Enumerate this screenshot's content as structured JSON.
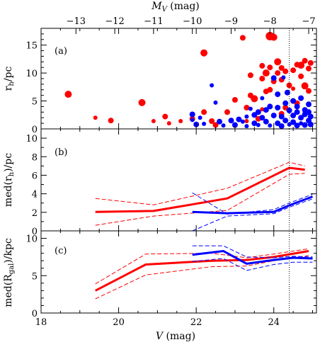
{
  "labels": {
    "top_axis": "M",
    "top_axis_sub": "V",
    "top_axis_unit": " (mag)",
    "bottom_axis": "V",
    "bottom_axis_unit": " (mag)",
    "ylabel_a_main": "r",
    "ylabel_a_sub": "h",
    "ylabel_a_unit": "/pc",
    "ylabel_b_pre": "med(r",
    "ylabel_b_sub": "h",
    "ylabel_b_post": ")/pc",
    "ylabel_c_pre": "med(R",
    "ylabel_c_sub": "gal",
    "ylabel_c_post": ")/kpc",
    "panel_a": "(a)",
    "panel_b": "(b)",
    "panel_c": "(c)"
  },
  "colors": {
    "red": "#ff0000",
    "blue": "#0000ff",
    "axis": "#000000"
  },
  "chart_data": [
    {
      "type": "scatter",
      "panel": "(a)",
      "xlim": [
        18,
        25.1
      ],
      "ylim": [
        0,
        18
      ],
      "x_ticks": [
        18,
        20,
        22,
        24
      ],
      "y_ticks": [
        0,
        5,
        10,
        15
      ],
      "top_axis_ticks": [
        -13,
        -12,
        -11,
        -10,
        -9,
        -8,
        -7
      ],
      "top_axis_offset": 31.9,
      "vline_x": 24.4,
      "series": [
        {
          "color": "red",
          "points": [
            [
              18.7,
              6.2,
              5
            ],
            [
              19.4,
              2.0,
              3
            ],
            [
              19.8,
              1.5,
              4
            ],
            [
              20.6,
              4.7,
              5
            ],
            [
              20.9,
              1.4,
              3
            ],
            [
              21.2,
              2.2,
              4
            ],
            [
              21.3,
              1.0,
              3
            ],
            [
              21.6,
              1.4,
              3
            ],
            [
              21.9,
              1.8,
              4
            ],
            [
              22.2,
              13.6,
              5
            ],
            [
              22.2,
              3.0,
              4
            ],
            [
              22.4,
              1.4,
              4
            ],
            [
              22.5,
              0.7,
              4
            ],
            [
              22.8,
              3.0,
              4
            ],
            [
              23.0,
              5.2,
              4
            ],
            [
              23.2,
              16.3,
              4
            ],
            [
              23.3,
              3.8,
              4
            ],
            [
              23.3,
              1.4,
              3
            ],
            [
              23.4,
              9.6,
              4
            ],
            [
              23.4,
              6.0,
              4
            ],
            [
              23.5,
              5.4,
              5
            ],
            [
              23.6,
              1.8,
              4
            ],
            [
              23.7,
              11.3,
              4
            ],
            [
              23.7,
              9.0,
              4
            ],
            [
              23.7,
              3.5,
              3
            ],
            [
              23.8,
              10.0,
              5
            ],
            [
              23.8,
              6.7,
              4
            ],
            [
              23.9,
              16.6,
              6
            ],
            [
              23.9,
              11.0,
              4
            ],
            [
              23.9,
              7.0,
              4
            ],
            [
              24.0,
              16.4,
              5
            ],
            [
              24.0,
              8.5,
              4
            ],
            [
              24.1,
              12.0,
              5
            ],
            [
              24.1,
              10.0,
              4
            ],
            [
              24.2,
              10.9,
              4
            ],
            [
              24.2,
              8.8,
              4
            ],
            [
              24.3,
              10.3,
              4
            ],
            [
              24.4,
              7.8,
              4
            ],
            [
              24.5,
              10.5,
              4
            ],
            [
              24.5,
              7.2,
              3
            ],
            [
              24.6,
              11.5,
              4
            ],
            [
              24.7,
              11.4,
              5
            ],
            [
              24.7,
              9.4,
              4
            ],
            [
              24.8,
              12.2,
              4
            ],
            [
              24.8,
              7.7,
              5
            ],
            [
              24.9,
              10.8,
              4
            ],
            [
              24.9,
              6.8,
              4
            ],
            [
              24.95,
              11.8,
              4
            ],
            [
              24.5,
              5.0,
              4
            ],
            [
              24.3,
              3.8,
              4
            ],
            [
              24.2,
              2.7,
              4
            ],
            [
              24.6,
              4.6,
              4
            ]
          ]
        },
        {
          "color": "blue",
          "points": [
            [
              21.9,
              2.6,
              4
            ],
            [
              21.9,
              1.6,
              3
            ],
            [
              22.0,
              0.8,
              4
            ],
            [
              22.1,
              2.0,
              3
            ],
            [
              22.2,
              0.9,
              3
            ],
            [
              22.4,
              7.8,
              3
            ],
            [
              22.5,
              4.7,
              3
            ],
            [
              22.6,
              1.3,
              4
            ],
            [
              22.7,
              0.6,
              3
            ],
            [
              22.9,
              1.5,
              4
            ],
            [
              23.0,
              0.7,
              4
            ],
            [
              23.1,
              1.7,
              4
            ],
            [
              23.2,
              1.3,
              3
            ],
            [
              23.3,
              0.5,
              3
            ],
            [
              23.3,
              2.2,
              3
            ],
            [
              23.4,
              3.6,
              3
            ],
            [
              23.5,
              1.0,
              4
            ],
            [
              23.5,
              2.5,
              4
            ],
            [
              23.6,
              3.0,
              4
            ],
            [
              23.6,
              0.7,
              3
            ],
            [
              23.7,
              2.0,
              4
            ],
            [
              23.7,
              5.5,
              3
            ],
            [
              23.8,
              1.3,
              4
            ],
            [
              23.8,
              3.4,
              4
            ],
            [
              23.9,
              0.6,
              3
            ],
            [
              23.9,
              4.0,
              4
            ],
            [
              24.0,
              2.4,
              4
            ],
            [
              24.0,
              9.1,
              4
            ],
            [
              24.1,
              1.0,
              4
            ],
            [
              24.1,
              3.8,
              4
            ],
            [
              24.1,
              6.2,
              4
            ],
            [
              24.2,
              2.2,
              4
            ],
            [
              24.2,
              0.5,
              4
            ],
            [
              24.3,
              1.5,
              4
            ],
            [
              24.3,
              4.6,
              4
            ],
            [
              24.4,
              3.3,
              4
            ],
            [
              24.4,
              0.8,
              3
            ],
            [
              24.5,
              2.4,
              4
            ],
            [
              24.5,
              5.0,
              4
            ],
            [
              24.5,
              1.2,
              4
            ],
            [
              24.6,
              3.0,
              4
            ],
            [
              24.6,
              0.6,
              4
            ],
            [
              24.6,
              4.0,
              4
            ],
            [
              24.7,
              2.0,
              4
            ],
            [
              24.7,
              1.0,
              3
            ],
            [
              24.7,
              5.5,
              4
            ],
            [
              24.8,
              3.4,
              4
            ],
            [
              24.8,
              0.7,
              4
            ],
            [
              24.8,
              2.6,
              4
            ],
            [
              24.9,
              1.5,
              4
            ],
            [
              24.9,
              4.4,
              4
            ],
            [
              24.9,
              3.0,
              4
            ],
            [
              24.95,
              2.2,
              4
            ],
            [
              24.95,
              0.8,
              4
            ],
            [
              24.35,
              6.5,
              4
            ],
            [
              24.25,
              9.2,
              3
            ]
          ]
        }
      ]
    },
    {
      "type": "line",
      "panel": "(b)",
      "xlim": [
        18,
        25.1
      ],
      "ylim": [
        0,
        11
      ],
      "x_ticks": [
        18,
        20,
        22,
        24
      ],
      "y_ticks": [
        0,
        2,
        4,
        6,
        8,
        10
      ],
      "vline_x": 24.4,
      "series": [
        {
          "color": "red",
          "style": "solid",
          "x": [
            19.4,
            20.9,
            22.8,
            24.4,
            24.8
          ],
          "y": [
            2.05,
            2.15,
            3.5,
            6.8,
            6.6
          ]
        },
        {
          "color": "red",
          "style": "dashed",
          "x": [
            19.4,
            20.9,
            22.8,
            24.4,
            24.8
          ],
          "y": [
            3.5,
            2.8,
            4.6,
            7.4,
            7.0
          ]
        },
        {
          "color": "red",
          "style": "dashed",
          "x": [
            19.4,
            20.9,
            22.8,
            24.4,
            24.8
          ],
          "y": [
            0.6,
            1.6,
            2.2,
            6.1,
            6.2
          ]
        },
        {
          "color": "blue",
          "style": "solid",
          "x": [
            21.9,
            22.8,
            24.0,
            24.4,
            25.0
          ],
          "y": [
            2.05,
            1.9,
            2.05,
            2.75,
            3.7
          ]
        },
        {
          "color": "blue",
          "style": "dashed",
          "x": [
            21.9,
            22.8,
            24.0,
            24.4,
            25.0
          ],
          "y": [
            4.1,
            1.8,
            2.3,
            3.0,
            3.95
          ]
        },
        {
          "color": "blue",
          "style": "dashed",
          "x": [
            21.9,
            22.8,
            24.0,
            24.4,
            25.0
          ],
          "y": [
            0.0,
            1.6,
            1.85,
            2.55,
            3.45
          ]
        }
      ]
    },
    {
      "type": "line",
      "panel": "(c)",
      "xlim": [
        18,
        25.1
      ],
      "ylim": [
        0,
        11
      ],
      "x_ticks": [
        18,
        20,
        22,
        24
      ],
      "y_ticks": [
        0,
        5,
        10
      ],
      "vline_x": 24.4,
      "series": [
        {
          "color": "red",
          "style": "solid",
          "x": [
            19.4,
            20.7,
            22.4,
            23.3,
            24.0,
            24.9
          ],
          "y": [
            3.0,
            6.5,
            7.0,
            7.1,
            7.5,
            8.3
          ]
        },
        {
          "color": "red",
          "style": "dashed",
          "x": [
            19.4,
            20.7,
            22.4,
            23.3,
            24.0,
            24.9
          ],
          "y": [
            3.9,
            7.9,
            8.0,
            7.4,
            7.9,
            8.6
          ]
        },
        {
          "color": "red",
          "style": "dashed",
          "x": [
            19.4,
            20.7,
            22.4,
            23.3,
            24.0,
            24.9
          ],
          "y": [
            1.9,
            5.1,
            6.2,
            6.3,
            7.0,
            7.7
          ]
        },
        {
          "color": "blue",
          "style": "solid",
          "x": [
            21.9,
            22.7,
            23.3,
            24.0,
            24.5,
            25.0
          ],
          "y": [
            7.8,
            8.3,
            6.6,
            7.1,
            7.4,
            7.3
          ]
        },
        {
          "color": "blue",
          "style": "dashed",
          "x": [
            21.9,
            22.7,
            23.3,
            24.0,
            24.5,
            25.0
          ],
          "y": [
            9.0,
            9.0,
            7.5,
            7.4,
            7.6,
            7.5
          ]
        },
        {
          "color": "blue",
          "style": "dashed",
          "x": [
            21.9,
            22.7,
            23.3,
            24.0,
            24.5,
            25.0
          ],
          "y": [
            6.9,
            7.3,
            5.7,
            6.5,
            6.8,
            6.8
          ]
        }
      ]
    }
  ]
}
